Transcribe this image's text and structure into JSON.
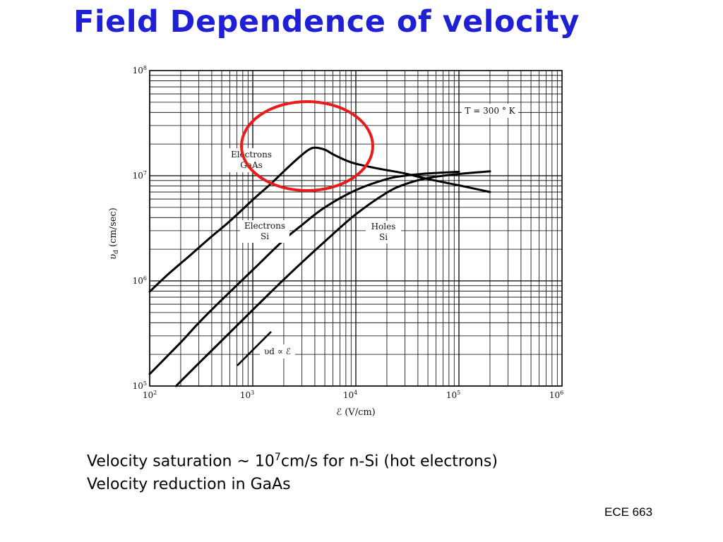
{
  "slide": {
    "title": "Field Dependence of velocity",
    "notes": [
      {
        "pre": "Velocity saturation ~ 10",
        "sup": "7",
        "post": "cm/s for n-Si (hot electrons)"
      },
      {
        "text": "Velocity reduction in GaAs"
      }
    ],
    "footer": "ECE 663"
  },
  "chart_data": {
    "type": "line",
    "x_scale": "log",
    "y_scale": "log",
    "xlim": [
      100,
      1000000
    ],
    "ylim": [
      100000,
      100000000
    ],
    "grid": true,
    "xlabel": "ℰ (V/cm)",
    "ylabel_var": "υ",
    "ylabel_sub": "d",
    "ylabel_unit": " (cm/sec)",
    "x_ticks": [
      {
        "value": 100,
        "base": "10",
        "exp": "2"
      },
      {
        "value": 1000,
        "base": "10",
        "exp": "3"
      },
      {
        "value": 10000,
        "base": "10",
        "exp": "4"
      },
      {
        "value": 100000,
        "base": "10",
        "exp": "5"
      },
      {
        "value": 1000000,
        "base": "10",
        "exp": "6"
      }
    ],
    "y_ticks": [
      {
        "value": 100000,
        "base": "10",
        "exp": "5"
      },
      {
        "value": 1000000,
        "base": "10",
        "exp": "6"
      },
      {
        "value": 10000000,
        "base": "10",
        "exp": "7"
      },
      {
        "value": 100000000,
        "base": "10",
        "exp": "8"
      }
    ],
    "annotations": {
      "temperature": "T = 300 ° K",
      "proportional": "υd ∝ ℰ"
    },
    "series": [
      {
        "label_lines": [
          "Electrons",
          "GaAs"
        ],
        "x": [
          100,
          150,
          250,
          400,
          600,
          1000,
          1500,
          2000,
          2500,
          3000,
          3500,
          4000,
          5000,
          6000,
          8000,
          10000,
          15000,
          20000,
          30000,
          50000,
          100000,
          200000
        ],
        "y": [
          790000,
          1150000,
          1770000,
          2650000,
          3700000,
          5900000,
          8400000,
          11000000,
          13500000,
          15800000,
          17700000,
          18500000,
          17700000,
          16000000,
          14000000,
          13000000,
          11900000,
          11300000,
          10500000,
          9300000,
          8100000,
          7000000
        ]
      },
      {
        "label_lines": [
          "Electrons",
          "Si"
        ],
        "x": [
          100,
          200,
          300,
          500,
          1000,
          2000,
          3000,
          5000,
          10000,
          20000,
          30000,
          50000,
          100000
        ],
        "y": [
          130000,
          260000,
          400000,
          660000,
          1270000,
          2450000,
          3400000,
          5000000,
          7300000,
          9300000,
          10000000,
          10500000,
          10900000
        ]
      },
      {
        "label_lines": [
          "Holes",
          "Si"
        ],
        "x": [
          180,
          300,
          500,
          1000,
          2000,
          3000,
          5000,
          10000,
          20000,
          30000,
          50000,
          100000,
          200000
        ],
        "y": [
          100000,
          165000,
          270000,
          530000,
          1030000,
          1500000,
          2370000,
          4300000,
          6900000,
          8300000,
          9500000,
          10400000,
          11000000
        ]
      }
    ]
  }
}
